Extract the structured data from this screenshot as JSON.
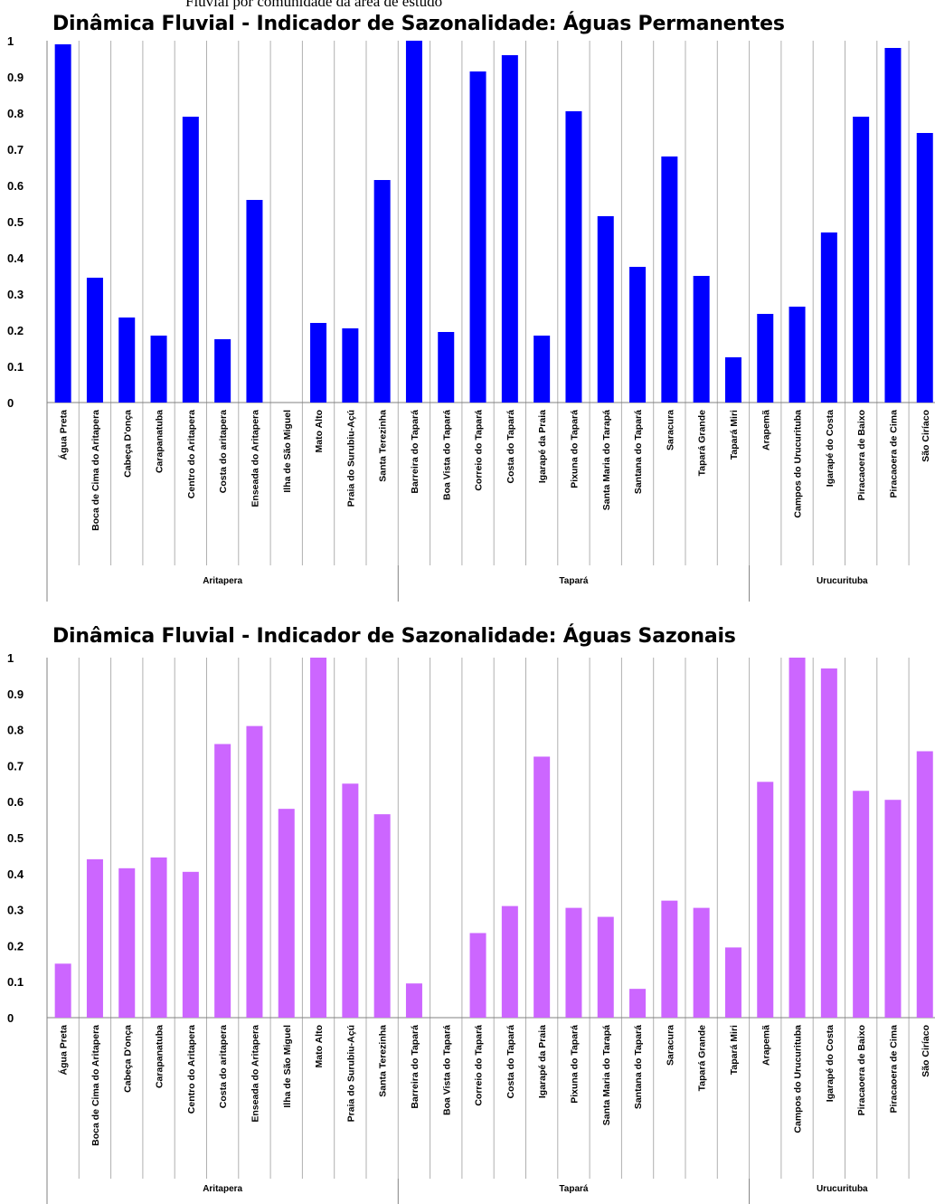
{
  "caption": "Fluvial por comunidade da área de estudo",
  "chart_data": [
    {
      "type": "bar",
      "title": "Dinâmica Fluvial - Indicador de Sazonalidade: Águas Permanentes",
      "color": "#0000ff",
      "ylim": [
        0,
        1
      ],
      "yticks": [
        "0",
        "0.1",
        "0.2",
        "0.3",
        "0.4",
        "0.5",
        "0.6",
        "0.7",
        "0.8",
        "0.9",
        "1"
      ],
      "grid": "vertical",
      "categories": [
        "Água Preta",
        "Boca de Cima do Aritapera",
        "Cabeça D'onça",
        "Carapanatuba",
        "Centro do Aritapera",
        "Costa do aritapera",
        "Enseada do Aritapera",
        "Ilha de São Miguel",
        "Mato Alto",
        "Praia do Surubiu-Açú",
        "Santa Terezinha",
        "Barreira do Tapará",
        "Boa Vista do Tapará",
        "Correio do Tapará",
        "Costa do Tapará",
        "Igarapé da Praia",
        "Pixuna do Tapará",
        "Santa Maria do Tarapá",
        "Santana do Tapará",
        "Saracura",
        "Tapará Grande",
        "Tapará Miri",
        "Arapemã",
        "Campos do Urucurituba",
        "Igarapé do Costa",
        "Piracaoera de Baixo",
        "Piracaoera de Cima",
        "São Ciríaco"
      ],
      "values": [
        0.99,
        0.345,
        0.235,
        0.185,
        0.79,
        0.175,
        0.56,
        0,
        0.22,
        0.205,
        0.615,
        1.0,
        0.195,
        0.915,
        0.96,
        0.185,
        0.805,
        0.515,
        0.375,
        0.68,
        0.35,
        0.125,
        0.245,
        0.265,
        0.47,
        0.79,
        0.98,
        0.745
      ],
      "groups": [
        {
          "name": "Aritapera",
          "count": 11
        },
        {
          "name": "Tapará",
          "count": 11
        },
        {
          "name": "Urucurituba",
          "count": 6
        }
      ]
    },
    {
      "type": "bar",
      "title": "Dinâmica Fluvial - Indicador de Sazonalidade: Águas Sazonais",
      "color": "#cc66ff",
      "ylim": [
        0,
        1
      ],
      "yticks": [
        "0",
        "0.1",
        "0.2",
        "0.3",
        "0.4",
        "0.5",
        "0.6",
        "0.7",
        "0.8",
        "0.9",
        "1"
      ],
      "grid": "vertical",
      "categories": [
        "Água Preta",
        "Boca de Cima do Aritapera",
        "Cabeça D'onça",
        "Carapanatuba",
        "Centro do Aritapera",
        "Costa do aritapera",
        "Enseada do Aritapera",
        "Ilha de São Miguel",
        "Mato Alto",
        "Praia do Surubiu-Açú",
        "Santa Terezinha",
        "Barreira do Tapará",
        "Boa Vista do Tapará",
        "Correio do Tapará",
        "Costa do Tapará",
        "Igarapé da Praia",
        "Pixuna do Tapará",
        "Santa Maria do Tarapá",
        "Santana do Tapará",
        "Saracura",
        "Tapará Grande",
        "Tapará Miri",
        "Arapemã",
        "Campos do Urucurituba",
        "Igarapé do Costa",
        "Piracaoera de Baixo",
        "Piracaoera de Cima",
        "São Ciríaco"
      ],
      "values": [
        0.15,
        0.44,
        0.415,
        0.445,
        0.405,
        0.76,
        0.81,
        0.58,
        1.0,
        0.65,
        0.565,
        0.095,
        0,
        0.235,
        0.31,
        0.725,
        0.305,
        0.28,
        0.08,
        0.325,
        0.305,
        0.195,
        0.655,
        1.0,
        0.97,
        0.63,
        0.605,
        0.74
      ],
      "groups": [
        {
          "name": "Aritapera",
          "count": 11
        },
        {
          "name": "Tapará",
          "count": 11
        },
        {
          "name": "Urucurituba",
          "count": 6
        }
      ]
    }
  ]
}
